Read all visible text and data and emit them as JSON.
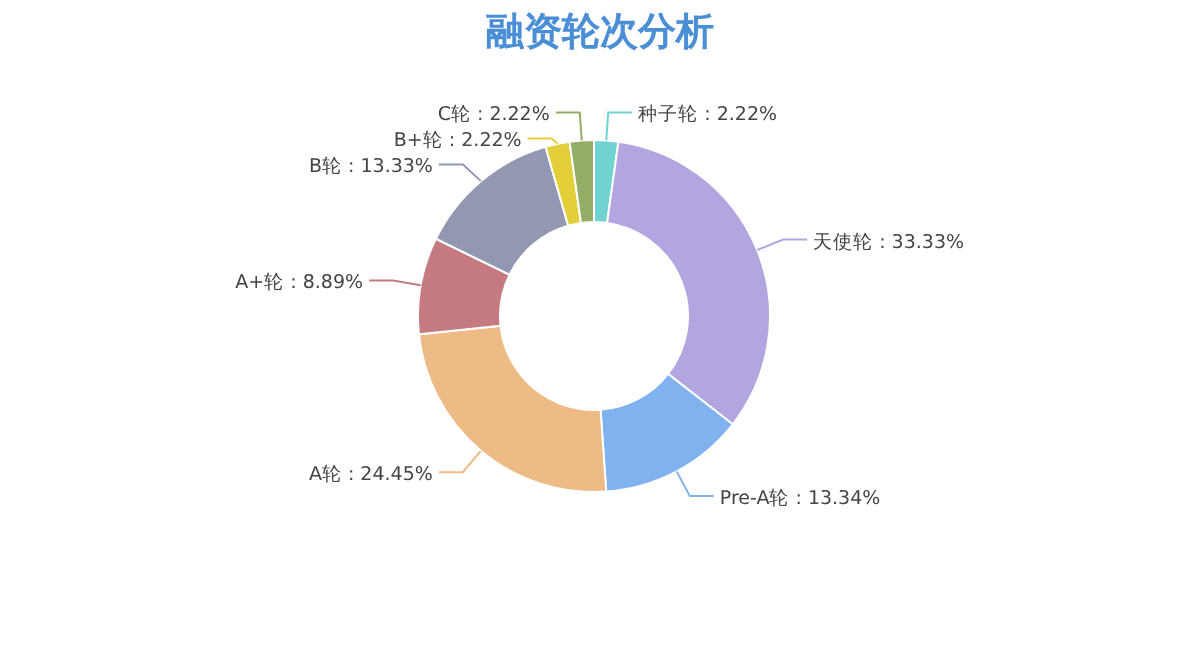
{
  "chart_data": {
    "type": "donut",
    "title": "融资轮次分析",
    "categories": [
      "种子轮",
      "天使轮",
      "Pre-A轮",
      "A轮",
      "A+轮",
      "B轮",
      "B+轮",
      "C轮"
    ],
    "values": [
      2.22,
      33.33,
      13.34,
      24.45,
      8.89,
      13.33,
      2.22,
      2.22
    ],
    "colors": [
      "#6fd4d0",
      "#b2a5e0",
      "#7fb2ee",
      "#eeba85",
      "#c47a80",
      "#9298b2",
      "#e3cf3a",
      "#93ad67"
    ],
    "value_labels": [
      ": 2.22%",
      ": 33.33%",
      ": 13.34%",
      ": 24.45%",
      ": 8.89%",
      ": 13.33%",
      ": 2.22%",
      ": 2.22%"
    ]
  }
}
